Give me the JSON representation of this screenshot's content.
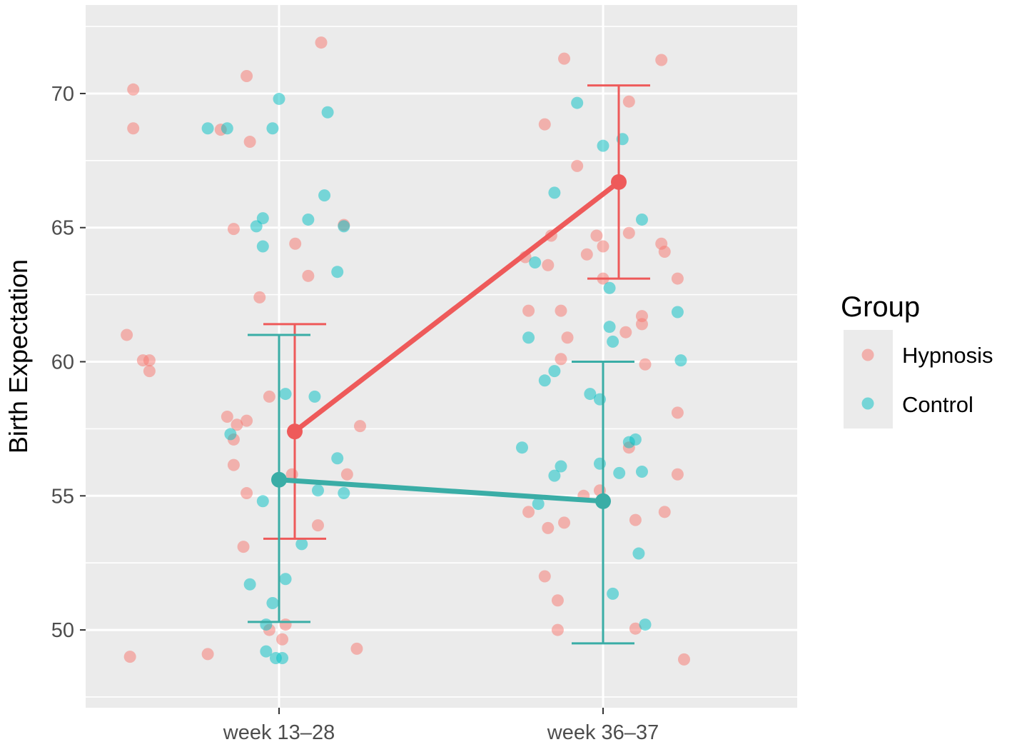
{
  "chart_data": {
    "type": "scatter",
    "title": "",
    "xlabel": "",
    "ylabel": "Birth Expectation",
    "categories": [
      "week 13–28",
      "week 36–37"
    ],
    "ylim": [
      47.1,
      73.3
    ],
    "y_ticks": [
      50,
      55,
      60,
      65,
      70
    ],
    "y_tick_labels": [
      "50",
      "55",
      "60",
      "65",
      "70"
    ],
    "grid": true,
    "legend": {
      "title": "Group",
      "position": "right",
      "entries": [
        "Hypnosis",
        "Control"
      ]
    },
    "colors": {
      "Hypnosis": "#f8766d",
      "Control": "#00bfc4",
      "HypnosisLine": "#ee5a5a",
      "ControlLine": "#3aada6"
    },
    "series": [
      {
        "name": "Hypnosis",
        "means": [
          57.4,
          66.7
        ],
        "error_bars": [
          [
            53.4,
            61.4
          ],
          [
            63.1,
            70.3
          ]
        ],
        "points": [
          {
            "cat": 0,
            "j": -0.45,
            "y": 70.15
          },
          {
            "cat": 0,
            "j": -0.45,
            "y": 68.7
          },
          {
            "cat": 0,
            "j": -0.1,
            "y": 70.65
          },
          {
            "cat": 0,
            "j": 0.13,
            "y": 71.9
          },
          {
            "cat": 0,
            "j": -0.18,
            "y": 68.65
          },
          {
            "cat": 0,
            "j": -0.09,
            "y": 68.2
          },
          {
            "cat": 0,
            "j": -0.14,
            "y": 64.95
          },
          {
            "cat": 0,
            "j": 0.05,
            "y": 64.4
          },
          {
            "cat": 0,
            "j": 0.2,
            "y": 65.1
          },
          {
            "cat": 0,
            "j": 0.09,
            "y": 63.2
          },
          {
            "cat": 0,
            "j": -0.06,
            "y": 62.4
          },
          {
            "cat": 0,
            "j": -0.47,
            "y": 61.0
          },
          {
            "cat": 0,
            "j": -0.42,
            "y": 60.05
          },
          {
            "cat": 0,
            "j": -0.4,
            "y": 60.05
          },
          {
            "cat": 0,
            "j": -0.4,
            "y": 59.65
          },
          {
            "cat": 0,
            "j": -0.03,
            "y": 58.7
          },
          {
            "cat": 0,
            "j": -0.16,
            "y": 57.95
          },
          {
            "cat": 0,
            "j": -0.13,
            "y": 57.65
          },
          {
            "cat": 0,
            "j": -0.1,
            "y": 57.8
          },
          {
            "cat": 0,
            "j": -0.14,
            "y": 57.1
          },
          {
            "cat": 0,
            "j": 0.25,
            "y": 57.6
          },
          {
            "cat": 0,
            "j": -0.14,
            "y": 56.15
          },
          {
            "cat": 0,
            "j": 0.04,
            "y": 55.8
          },
          {
            "cat": 0,
            "j": 0.21,
            "y": 55.8
          },
          {
            "cat": 0,
            "j": -0.1,
            "y": 55.1
          },
          {
            "cat": 0,
            "j": 0.12,
            "y": 53.9
          },
          {
            "cat": 0,
            "j": -0.11,
            "y": 53.1
          },
          {
            "cat": 0,
            "j": -0.03,
            "y": 50.0
          },
          {
            "cat": 0,
            "j": 0.02,
            "y": 50.2
          },
          {
            "cat": 0,
            "j": 0.01,
            "y": 49.65
          },
          {
            "cat": 0,
            "j": -0.22,
            "y": 49.1
          },
          {
            "cat": 0,
            "j": -0.46,
            "y": 49.0
          },
          {
            "cat": 0,
            "j": 0.24,
            "y": 49.3
          },
          {
            "cat": 1,
            "j": -0.12,
            "y": 71.3
          },
          {
            "cat": 1,
            "j": 0.18,
            "y": 71.25
          },
          {
            "cat": 1,
            "j": -0.18,
            "y": 68.85
          },
          {
            "cat": 1,
            "j": 0.08,
            "y": 69.7
          },
          {
            "cat": 1,
            "j": -0.08,
            "y": 67.3
          },
          {
            "cat": 1,
            "j": -0.16,
            "y": 64.7
          },
          {
            "cat": 1,
            "j": -0.02,
            "y": 64.7
          },
          {
            "cat": 1,
            "j": -0.05,
            "y": 64.0
          },
          {
            "cat": 1,
            "j": 0.0,
            "y": 64.3
          },
          {
            "cat": 1,
            "j": -0.24,
            "y": 63.9
          },
          {
            "cat": 1,
            "j": -0.17,
            "y": 63.6
          },
          {
            "cat": 1,
            "j": 0.08,
            "y": 64.8
          },
          {
            "cat": 1,
            "j": 0.0,
            "y": 63.1
          },
          {
            "cat": 1,
            "j": 0.18,
            "y": 64.4
          },
          {
            "cat": 1,
            "j": 0.19,
            "y": 64.1
          },
          {
            "cat": 1,
            "j": 0.23,
            "y": 63.1
          },
          {
            "cat": 1,
            "j": -0.23,
            "y": 61.9
          },
          {
            "cat": 1,
            "j": -0.13,
            "y": 61.9
          },
          {
            "cat": 1,
            "j": -0.11,
            "y": 60.9
          },
          {
            "cat": 1,
            "j": 0.07,
            "y": 61.1
          },
          {
            "cat": 1,
            "j": 0.12,
            "y": 61.7
          },
          {
            "cat": 1,
            "j": 0.12,
            "y": 61.4
          },
          {
            "cat": 1,
            "j": -0.13,
            "y": 60.1
          },
          {
            "cat": 1,
            "j": 0.13,
            "y": 59.9
          },
          {
            "cat": 1,
            "j": 0.23,
            "y": 58.1
          },
          {
            "cat": 1,
            "j": 0.08,
            "y": 56.8
          },
          {
            "cat": 1,
            "j": 0.23,
            "y": 55.8
          },
          {
            "cat": 1,
            "j": -0.06,
            "y": 55.0
          },
          {
            "cat": 1,
            "j": -0.01,
            "y": 55.2
          },
          {
            "cat": 1,
            "j": -0.23,
            "y": 54.4
          },
          {
            "cat": 1,
            "j": -0.17,
            "y": 53.8
          },
          {
            "cat": 1,
            "j": -0.12,
            "y": 54.0
          },
          {
            "cat": 1,
            "j": 0.1,
            "y": 54.1
          },
          {
            "cat": 1,
            "j": 0.19,
            "y": 54.4
          },
          {
            "cat": 1,
            "j": -0.18,
            "y": 52.0
          },
          {
            "cat": 1,
            "j": -0.14,
            "y": 51.1
          },
          {
            "cat": 1,
            "j": -0.14,
            "y": 50.0
          },
          {
            "cat": 1,
            "j": 0.1,
            "y": 50.05
          },
          {
            "cat": 1,
            "j": 0.25,
            "y": 48.9
          }
        ]
      },
      {
        "name": "Control",
        "means": [
          55.6,
          54.8
        ],
        "error_bars": [
          [
            50.3,
            61.0
          ],
          [
            49.5,
            60.0
          ]
        ],
        "points": [
          {
            "cat": 0,
            "j": -0.22,
            "y": 68.7
          },
          {
            "cat": 0,
            "j": -0.16,
            "y": 68.7
          },
          {
            "cat": 0,
            "j": -0.02,
            "y": 68.7
          },
          {
            "cat": 0,
            "j": 0.0,
            "y": 69.8
          },
          {
            "cat": 0,
            "j": 0.15,
            "y": 69.3
          },
          {
            "cat": 0,
            "j": -0.05,
            "y": 65.35
          },
          {
            "cat": 0,
            "j": -0.07,
            "y": 65.05
          },
          {
            "cat": 0,
            "j": -0.05,
            "y": 64.3
          },
          {
            "cat": 0,
            "j": 0.09,
            "y": 65.3
          },
          {
            "cat": 0,
            "j": 0.14,
            "y": 66.2
          },
          {
            "cat": 0,
            "j": 0.2,
            "y": 65.05
          },
          {
            "cat": 0,
            "j": 0.18,
            "y": 63.35
          },
          {
            "cat": 0,
            "j": 0.02,
            "y": 58.8
          },
          {
            "cat": 0,
            "j": 0.11,
            "y": 58.7
          },
          {
            "cat": 0,
            "j": -0.15,
            "y": 57.3
          },
          {
            "cat": 0,
            "j": 0.18,
            "y": 56.4
          },
          {
            "cat": 0,
            "j": 0.12,
            "y": 55.2
          },
          {
            "cat": 0,
            "j": 0.2,
            "y": 55.1
          },
          {
            "cat": 0,
            "j": -0.05,
            "y": 54.8
          },
          {
            "cat": 0,
            "j": 0.07,
            "y": 53.2
          },
          {
            "cat": 0,
            "j": -0.09,
            "y": 51.7
          },
          {
            "cat": 0,
            "j": 0.02,
            "y": 51.9
          },
          {
            "cat": 0,
            "j": -0.02,
            "y": 51.0
          },
          {
            "cat": 0,
            "j": -0.04,
            "y": 50.2
          },
          {
            "cat": 0,
            "j": -0.04,
            "y": 49.2
          },
          {
            "cat": 0,
            "j": -0.01,
            "y": 48.95
          },
          {
            "cat": 0,
            "j": 0.01,
            "y": 48.95
          },
          {
            "cat": 1,
            "j": -0.08,
            "y": 69.65
          },
          {
            "cat": 1,
            "j": 0.0,
            "y": 68.05
          },
          {
            "cat": 1,
            "j": 0.06,
            "y": 68.3
          },
          {
            "cat": 1,
            "j": -0.15,
            "y": 66.3
          },
          {
            "cat": 1,
            "j": 0.12,
            "y": 65.3
          },
          {
            "cat": 1,
            "j": -0.21,
            "y": 63.7
          },
          {
            "cat": 1,
            "j": 0.02,
            "y": 62.75
          },
          {
            "cat": 1,
            "j": -0.23,
            "y": 60.9
          },
          {
            "cat": 1,
            "j": 0.02,
            "y": 61.3
          },
          {
            "cat": 1,
            "j": 0.03,
            "y": 60.75
          },
          {
            "cat": 1,
            "j": 0.23,
            "y": 61.85
          },
          {
            "cat": 1,
            "j": 0.24,
            "y": 60.05
          },
          {
            "cat": 1,
            "j": -0.18,
            "y": 59.3
          },
          {
            "cat": 1,
            "j": -0.15,
            "y": 59.65
          },
          {
            "cat": 1,
            "j": -0.04,
            "y": 58.8
          },
          {
            "cat": 1,
            "j": -0.01,
            "y": 58.6
          },
          {
            "cat": 1,
            "j": 0.08,
            "y": 57.0
          },
          {
            "cat": 1,
            "j": 0.1,
            "y": 57.1
          },
          {
            "cat": 1,
            "j": -0.25,
            "y": 56.8
          },
          {
            "cat": 1,
            "j": -0.13,
            "y": 56.1
          },
          {
            "cat": 1,
            "j": -0.15,
            "y": 55.75
          },
          {
            "cat": 1,
            "j": -0.01,
            "y": 56.2
          },
          {
            "cat": 1,
            "j": 0.05,
            "y": 55.85
          },
          {
            "cat": 1,
            "j": 0.12,
            "y": 55.9
          },
          {
            "cat": 1,
            "j": -0.2,
            "y": 54.7
          },
          {
            "cat": 1,
            "j": 0.11,
            "y": 52.85
          },
          {
            "cat": 1,
            "j": 0.03,
            "y": 51.35
          },
          {
            "cat": 1,
            "j": 0.13,
            "y": 50.2
          }
        ]
      }
    ]
  }
}
